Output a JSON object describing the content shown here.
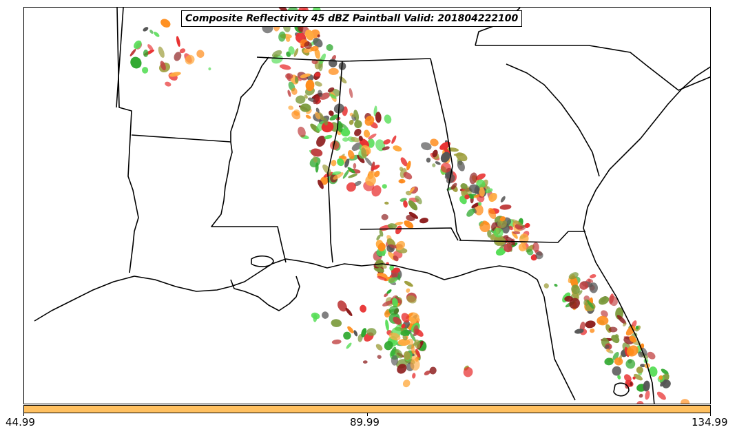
{
  "title": "Composite Reflectivity 45 dBZ Paintball Valid: 201804222100",
  "colorbar": {
    "color": "#ffc060",
    "ticks": [
      "44.99",
      "89.99",
      "134.99"
    ],
    "min": 44.99,
    "max": 134.99
  },
  "member_colors": [
    "#e83030",
    "#ff8c1a",
    "#ffaa40",
    "#2ea82e",
    "#55dd55",
    "#8b1a1a",
    "#555555",
    "#a0a040",
    "#c04040",
    "#7a9a3a"
  ],
  "boundary_color": "#000000",
  "map_features": [
    "state-borders",
    "coastline",
    "paintball-reflectivity-blobs"
  ]
}
